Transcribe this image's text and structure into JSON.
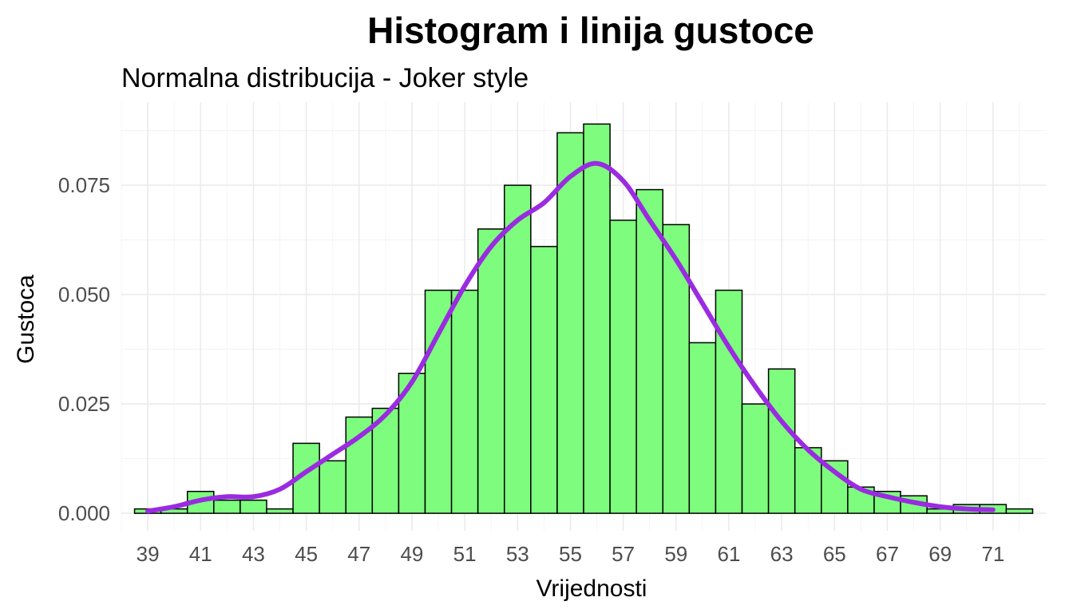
{
  "chart_data": {
    "type": "bar",
    "title": "Histogram i linija gustoce",
    "subtitle": "Normalna distribucija - Joker style",
    "xlabel": "Vrijednosti",
    "ylabel": "Gustoca",
    "bin_width": 1,
    "bins_center": [
      39,
      40,
      41,
      42,
      43,
      44,
      45,
      46,
      47,
      48,
      49,
      50,
      51,
      52,
      53,
      54,
      55,
      56,
      57,
      58,
      59,
      60,
      61,
      62,
      63,
      64,
      65,
      66,
      67,
      68,
      69,
      70,
      71,
      72
    ],
    "values": [
      0.001,
      0.001,
      0.005,
      0.003,
      0.003,
      0.001,
      0.016,
      0.012,
      0.022,
      0.024,
      0.032,
      0.051,
      0.051,
      0.065,
      0.075,
      0.061,
      0.087,
      0.089,
      0.067,
      0.074,
      0.066,
      0.039,
      0.051,
      0.025,
      0.033,
      0.015,
      0.012,
      0.006,
      0.005,
      0.004,
      0.001,
      0.002,
      0.002,
      0.001
    ],
    "density": {
      "x": [
        39,
        40,
        41,
        42,
        43,
        44,
        45,
        46,
        47,
        48,
        49,
        50,
        51,
        52,
        53,
        54,
        55,
        56,
        57,
        58,
        59,
        60,
        61,
        62,
        63,
        64,
        65,
        66,
        67,
        68,
        69,
        70,
        71
      ],
      "y": [
        0.0005,
        0.0015,
        0.003,
        0.0038,
        0.0038,
        0.0055,
        0.0095,
        0.0135,
        0.0175,
        0.0225,
        0.03,
        0.041,
        0.052,
        0.061,
        0.067,
        0.071,
        0.077,
        0.08,
        0.076,
        0.067,
        0.058,
        0.048,
        0.038,
        0.029,
        0.021,
        0.0145,
        0.0095,
        0.0055,
        0.0038,
        0.0025,
        0.0015,
        0.001,
        0.0008
      ]
    },
    "x_ticks": [
      39,
      41,
      43,
      45,
      47,
      49,
      51,
      53,
      55,
      57,
      59,
      61,
      63,
      65,
      67,
      69,
      71
    ],
    "y_ticks": [
      "0.000",
      "0.025",
      "0.050",
      "0.075"
    ],
    "xlim": [
      38.0,
      73.0
    ],
    "ylim": [
      -0.004,
      0.094
    ],
    "grid": true,
    "bar_color": "#7dfc7d",
    "bar_border_color": "#000000",
    "line_color": "#9a2be1"
  }
}
